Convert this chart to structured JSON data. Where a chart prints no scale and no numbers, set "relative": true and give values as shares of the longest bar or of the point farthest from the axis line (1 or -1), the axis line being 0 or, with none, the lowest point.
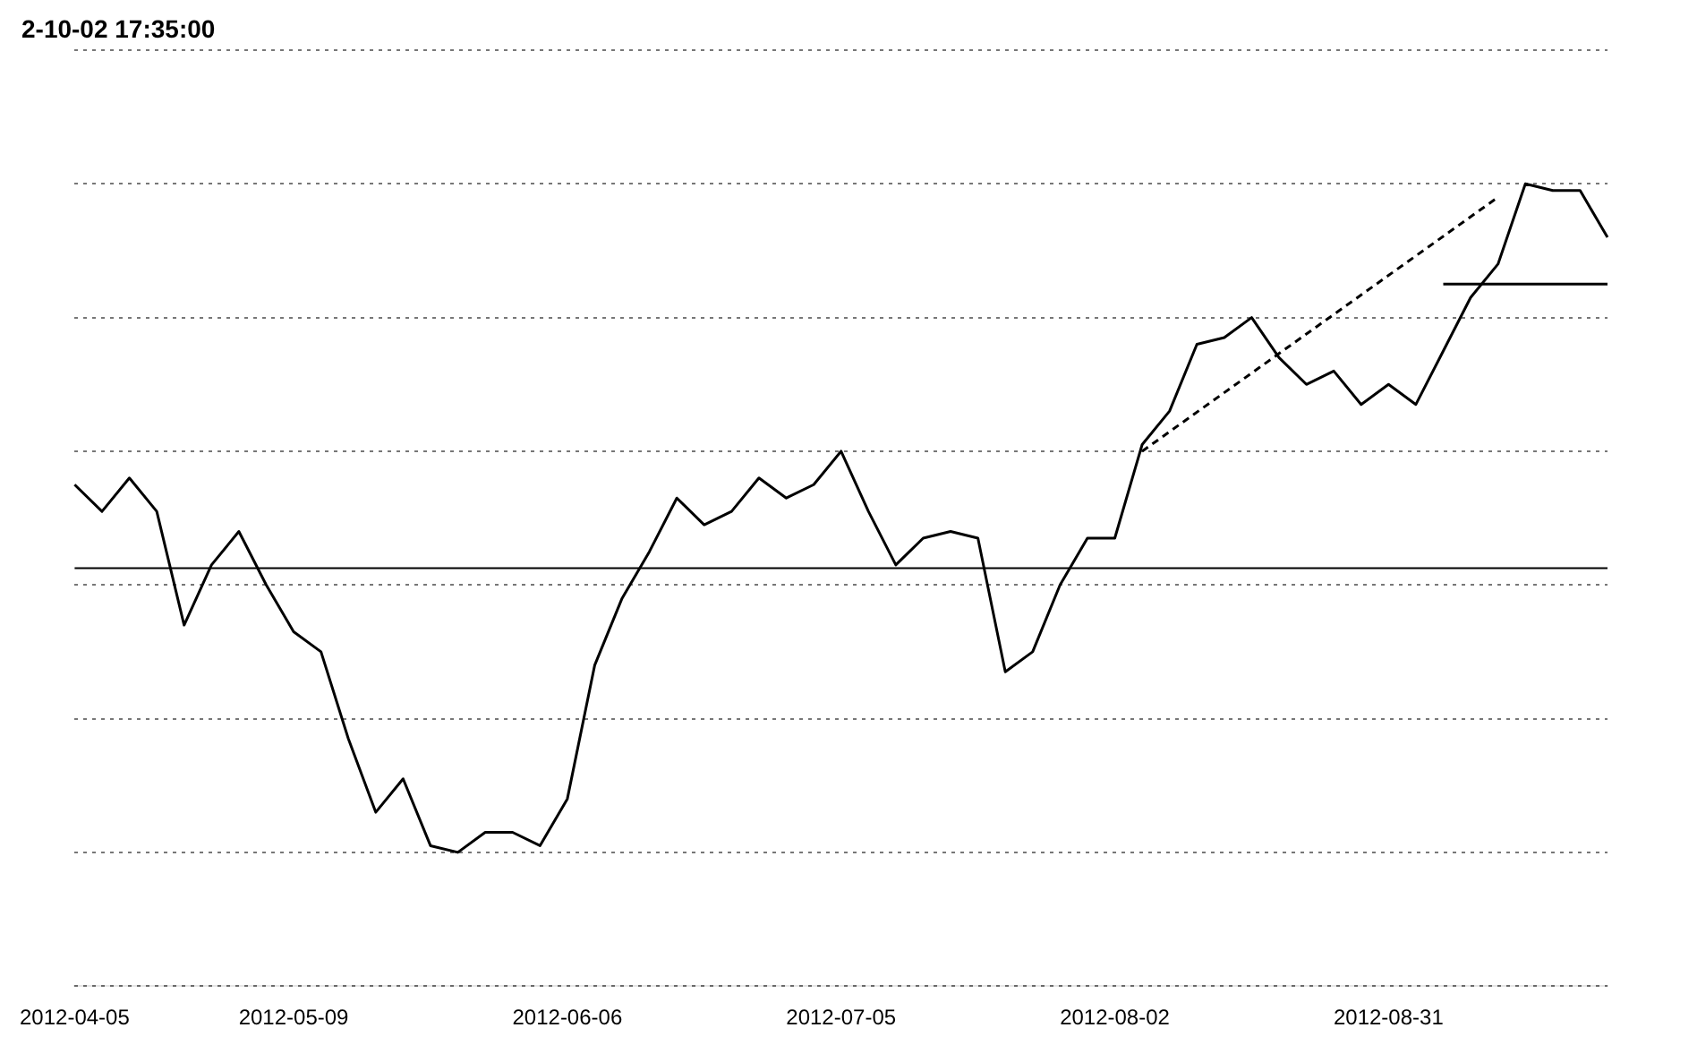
{
  "chart_data": {
    "type": "line",
    "relative": true,
    "grid": "y",
    "legend": false,
    "marker": "none",
    "annotations": [
      "2-10-02 17:35:00"
    ],
    "categories": [
      "2012-04-05",
      null,
      null,
      null,
      null,
      null,
      null,
      null,
      "2012-05-09",
      null,
      null,
      null,
      null,
      null,
      null,
      null,
      null,
      null,
      "2012-06-06",
      null,
      null,
      null,
      null,
      null,
      null,
      null,
      null,
      null,
      "2012-07-05",
      null,
      null,
      null,
      null,
      null,
      null,
      null,
      null,
      null,
      "2012-08-02",
      null,
      null,
      null,
      null,
      null,
      null,
      null,
      null,
      null,
      "2012-08-31",
      null,
      null,
      null,
      null,
      null,
      null,
      null,
      null
    ],
    "series": [
      {
        "color": "#000000",
        "line_style": "solid",
        "values": [
          0.55,
          0.51,
          0.56,
          0.51,
          0.34,
          0.43,
          0.48,
          0.4,
          0.33,
          0.3,
          0.17,
          0.06,
          0.11,
          0.01,
          0,
          0.03,
          0.03,
          0.01,
          0.08,
          0.28,
          0.38,
          0.45,
          0.53,
          0.49,
          0.51,
          0.56,
          0.53,
          0.55,
          0.6,
          0.51,
          0.43,
          0.47,
          0.48,
          0.47,
          0.27,
          0.3,
          0.4,
          0.47,
          0.47,
          0.61,
          0.66,
          0.76,
          0.77,
          0.8,
          0.74,
          0.7,
          0.72,
          0.67,
          0.7,
          0.67,
          0.75,
          0.83,
          0.88,
          1,
          0.99,
          0.99,
          0.92
        ]
      },
      {
        "type": "line",
        "color": "#000000",
        "line_style": "dashed",
        "values": [
          null,
          null,
          null,
          null,
          null,
          null,
          null,
          null,
          null,
          null,
          null,
          null,
          null,
          null,
          null,
          null,
          null,
          null,
          null,
          null,
          null,
          null,
          null,
          null,
          null,
          null,
          null,
          null,
          null,
          null,
          null,
          null,
          null,
          null,
          null,
          null,
          null,
          null,
          null,
          0.6,
          null,
          null,
          null,
          null,
          null,
          null,
          null,
          null,
          null,
          null,
          null,
          null,
          0.98,
          null,
          null,
          null,
          null
        ]
      },
      {
        "type": "line",
        "color": "#000000",
        "line_style": "solid",
        "values": [
          null,
          null,
          null,
          null,
          null,
          null,
          null,
          null,
          null,
          null,
          null,
          null,
          null,
          null,
          null,
          null,
          null,
          null,
          null,
          null,
          null,
          null,
          null,
          null,
          null,
          null,
          null,
          null,
          null,
          null,
          null,
          null,
          null,
          null,
          null,
          null,
          null,
          null,
          null,
          null,
          null,
          null,
          null,
          null,
          null,
          null,
          null,
          null,
          null,
          null,
          0.85,
          0.85,
          0.85,
          0.85,
          0.85,
          0.85,
          0.85
        ]
      }
    ],
    "ref_lines": [
      {
        "axis": "y",
        "value": 0.425,
        "color": "#000000"
      }
    ]
  }
}
